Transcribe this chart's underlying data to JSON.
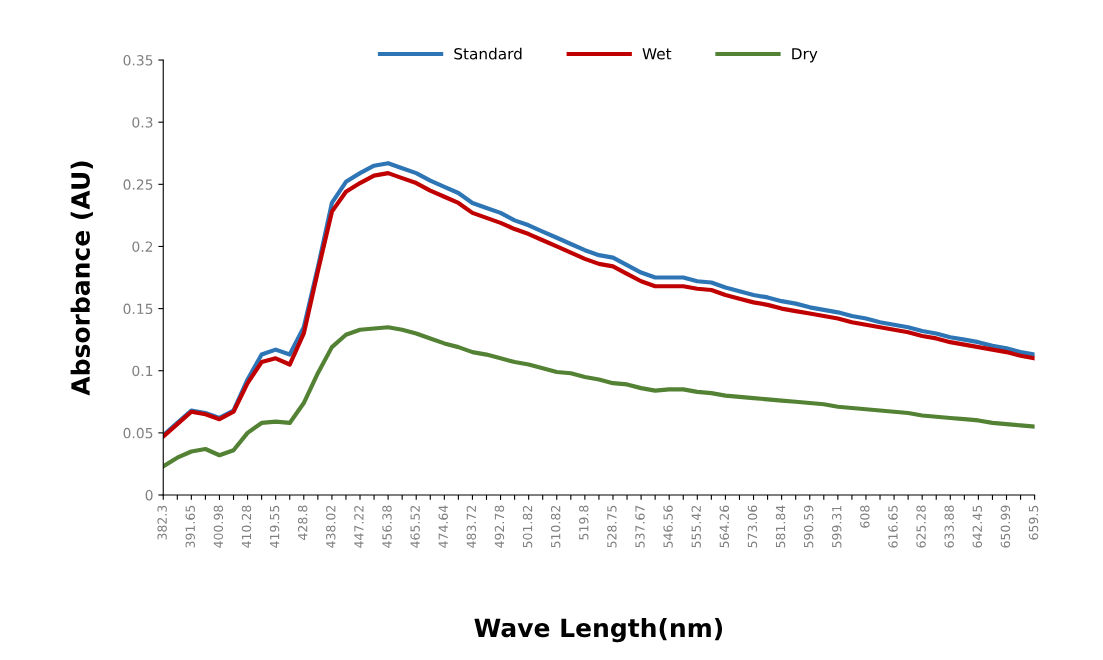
{
  "chart_data": {
    "type": "line",
    "xlabel": "Wave Length(nm)",
    "ylabel": "Absorbance (AU)",
    "categories": [
      "382.3",
      null,
      "391.65",
      null,
      "400.98",
      null,
      "410.28",
      null,
      "419.55",
      null,
      "428.8",
      null,
      "438.02",
      null,
      "447.22",
      null,
      "456.38",
      null,
      "465.52",
      null,
      "474.64",
      null,
      "483.72",
      null,
      "492.78",
      null,
      "501.82",
      null,
      "510.82",
      null,
      "519.8",
      null,
      "528.75",
      null,
      "537.67",
      null,
      "546.56",
      null,
      "555.42",
      null,
      "564.26",
      null,
      "573.06",
      null,
      "581.84",
      null,
      "590.59",
      null,
      "599.31",
      null,
      "608",
      null,
      "616.65",
      null,
      "625.28",
      null,
      "633.88",
      null,
      "642.45",
      null,
      "650.99",
      null,
      "659.5"
    ],
    "series": [
      {
        "name": "Standard",
        "color": "#2e75b6",
        "values": [
          0.048,
          0.058,
          0.068,
          0.066,
          0.062,
          0.068,
          0.093,
          0.113,
          0.117,
          0.113,
          0.135,
          0.183,
          0.235,
          0.252,
          0.259,
          0.265,
          0.267,
          0.263,
          0.259,
          0.253,
          0.248,
          0.243,
          0.235,
          0.231,
          0.227,
          0.221,
          0.217,
          0.212,
          0.207,
          0.202,
          0.197,
          0.193,
          0.191,
          0.185,
          0.179,
          0.175,
          0.175,
          0.175,
          0.172,
          0.171,
          0.167,
          0.164,
          0.161,
          0.159,
          0.156,
          0.154,
          0.151,
          0.149,
          0.147,
          0.144,
          0.142,
          0.139,
          0.137,
          0.135,
          0.132,
          0.13,
          0.127,
          0.125,
          0.123,
          0.12,
          0.118,
          0.115,
          0.113
        ]
      },
      {
        "name": "Wet",
        "color": "#c00000",
        "values": [
          0.047,
          0.057,
          0.067,
          0.065,
          0.061,
          0.067,
          0.09,
          0.107,
          0.11,
          0.105,
          0.13,
          0.18,
          0.228,
          0.244,
          0.251,
          0.257,
          0.259,
          0.255,
          0.251,
          0.245,
          0.24,
          0.235,
          0.227,
          0.223,
          0.219,
          0.214,
          0.21,
          0.205,
          0.2,
          0.195,
          0.19,
          0.186,
          0.184,
          0.178,
          0.172,
          0.168,
          0.168,
          0.168,
          0.166,
          0.165,
          0.161,
          0.158,
          0.155,
          0.153,
          0.15,
          0.148,
          0.146,
          0.144,
          0.142,
          0.139,
          0.137,
          0.135,
          0.133,
          0.131,
          0.128,
          0.126,
          0.123,
          0.121,
          0.119,
          0.117,
          0.115,
          0.112,
          0.11
        ]
      },
      {
        "name": "Dry",
        "color": "#548235",
        "values": [
          0.023,
          0.03,
          0.035,
          0.037,
          0.032,
          0.036,
          0.05,
          0.058,
          0.059,
          0.058,
          0.074,
          0.098,
          0.119,
          0.129,
          0.133,
          0.134,
          0.135,
          0.133,
          0.13,
          0.126,
          0.122,
          0.119,
          0.115,
          0.113,
          0.11,
          0.107,
          0.105,
          0.102,
          0.099,
          0.098,
          0.095,
          0.093,
          0.09,
          0.089,
          0.086,
          0.084,
          0.085,
          0.085,
          0.083,
          0.082,
          0.08,
          0.079,
          0.078,
          0.077,
          0.076,
          0.075,
          0.074,
          0.073,
          0.071,
          0.07,
          0.069,
          0.068,
          0.067,
          0.066,
          0.064,
          0.063,
          0.062,
          0.061,
          0.06,
          0.058,
          0.057,
          0.056,
          0.055
        ]
      }
    ],
    "ylim": [
      0,
      0.35
    ],
    "yticks": [
      0,
      0.05,
      0.1,
      0.15,
      0.2,
      0.25,
      0.3,
      0.35
    ],
    "grid": false,
    "legend": "top",
    "line_style": "solid"
  }
}
